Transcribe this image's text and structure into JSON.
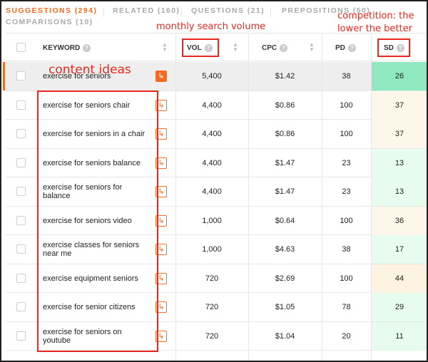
{
  "tabs": [
    {
      "label": "SUGGESTIONS (294)",
      "active": true
    },
    {
      "label": "RELATED (160)",
      "active": false
    },
    {
      "label": "QUESTIONS (21)",
      "active": false
    },
    {
      "label": "PREPOSITIONS (50)",
      "active": false
    },
    {
      "label": "COMPARISONS (10)",
      "active": false
    }
  ],
  "headers": {
    "keyword": "KEYWORD",
    "vol": "VOL",
    "cpc": "CPC",
    "pd": "PD",
    "sd": "SD",
    "info_glyph": "?"
  },
  "rows": [
    {
      "keyword": "exercise for seniors",
      "vol": "5,400",
      "cpc": "$1.42",
      "pd": "38",
      "sd": "26",
      "sd_color": "#8fe8bf",
      "highlighted": true
    },
    {
      "keyword": "exercise for seniors chair",
      "vol": "4,400",
      "cpc": "$0.86",
      "pd": "100",
      "sd": "37",
      "sd_color": "#fdf7ea",
      "highlighted": false
    },
    {
      "keyword": "exercise for seniors in a chair",
      "vol": "4,400",
      "cpc": "$0.86",
      "pd": "100",
      "sd": "37",
      "sd_color": "#fdf7ea",
      "highlighted": false
    },
    {
      "keyword": "exercise for seniors balance",
      "vol": "4,400",
      "cpc": "$1.47",
      "pd": "23",
      "sd": "13",
      "sd_color": "#e7fbef",
      "highlighted": false
    },
    {
      "keyword": "exercise for seniors for balance",
      "vol": "4,400",
      "cpc": "$1.47",
      "pd": "23",
      "sd": "13",
      "sd_color": "#e7fbef",
      "highlighted": false
    },
    {
      "keyword": "exercise for seniors video",
      "vol": "1,000",
      "cpc": "$0.64",
      "pd": "100",
      "sd": "36",
      "sd_color": "#fdf7ea",
      "highlighted": false
    },
    {
      "keyword": "exercise classes for seniors near me",
      "vol": "1,000",
      "cpc": "$4.63",
      "pd": "38",
      "sd": "17",
      "sd_color": "#e7fbef",
      "highlighted": false
    },
    {
      "keyword": "exercise equipment seniors",
      "vol": "720",
      "cpc": "$2.69",
      "pd": "100",
      "sd": "44",
      "sd_color": "#fdf3e3",
      "highlighted": false
    },
    {
      "keyword": "exercise for senior citizens",
      "vol": "720",
      "cpc": "$1.05",
      "pd": "78",
      "sd": "29",
      "sd_color": "#e7fbef",
      "highlighted": false
    },
    {
      "keyword": "exercise for seniors on youtube",
      "vol": "720",
      "cpc": "$1.04",
      "pd": "20",
      "sd": "11",
      "sd_color": "#e7fbef",
      "highlighted": false
    }
  ],
  "annotations": {
    "volume": "monthly search volume",
    "competition_line1": "competition: the",
    "competition_line2": "lower the better",
    "content": "content ideas"
  },
  "icons": {
    "open_arrow": "open-keyword-icon",
    "sort": "sort-icon",
    "info": "info-icon"
  },
  "accent_color": "#f26b21",
  "annotation_color": "#e8281c"
}
